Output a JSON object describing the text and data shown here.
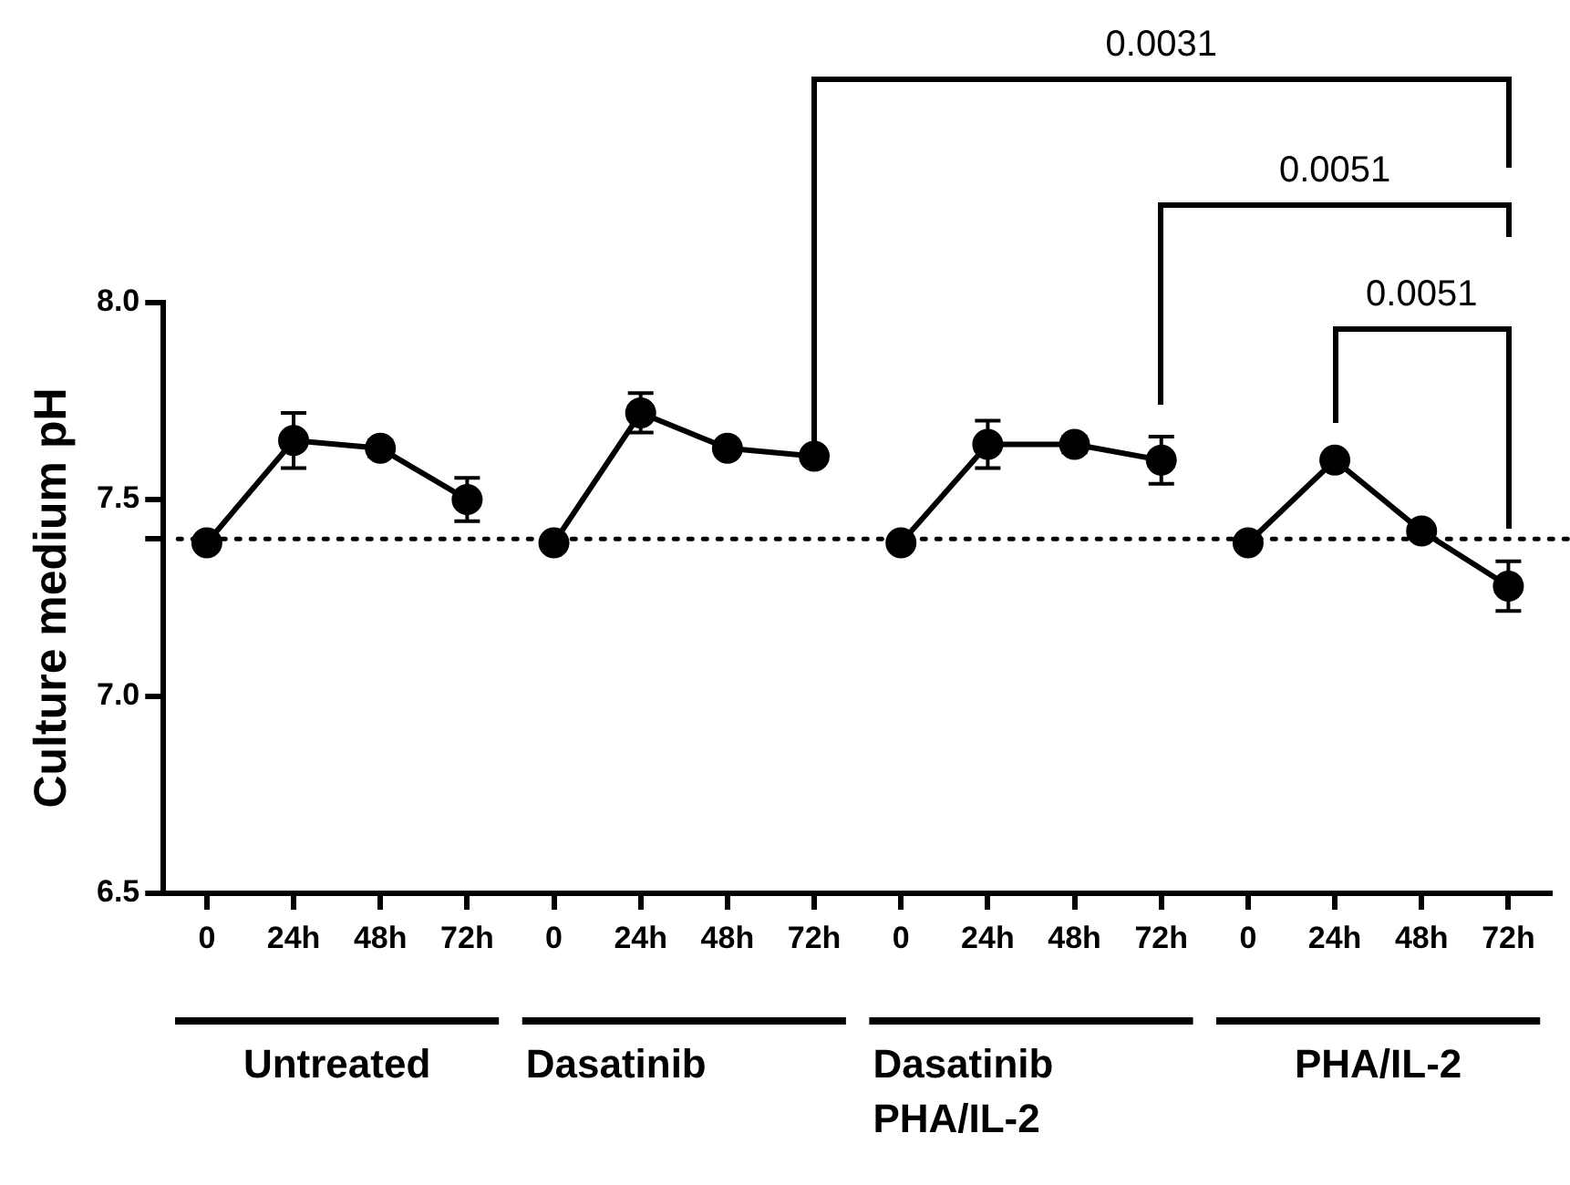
{
  "chart_data": {
    "type": "line",
    "ylabel": "Culture medium pH",
    "categories": [
      "0",
      "24h",
      "48h",
      "72h",
      "0",
      "24h",
      "48h",
      "72h",
      "0",
      "24h",
      "48h",
      "72h",
      "0",
      "24h",
      "48h",
      "72h"
    ],
    "series": [
      {
        "color": "#000000",
        "values": [
          7.39,
          7.65,
          7.63,
          7.5,
          null,
          null,
          null,
          null,
          null,
          null,
          null,
          null,
          null,
          null,
          null,
          null
        ],
        "errors": [
          null,
          0.07,
          0.02,
          0.055,
          null,
          null,
          null,
          null,
          null,
          null,
          null,
          null,
          null,
          null,
          null,
          null
        ]
      },
      {
        "color": "#000000",
        "values": [
          null,
          null,
          null,
          null,
          7.39,
          7.72,
          7.63,
          7.61,
          null,
          null,
          null,
          null,
          null,
          null,
          null,
          null
        ],
        "errors": [
          null,
          null,
          null,
          null,
          null,
          0.05,
          null,
          null,
          null,
          null,
          null,
          null,
          null,
          null,
          null,
          null
        ]
      },
      {
        "color": "#000000",
        "values": [
          null,
          null,
          null,
          null,
          null,
          null,
          null,
          null,
          7.39,
          7.64,
          7.64,
          7.6,
          null,
          null,
          null,
          null
        ],
        "errors": [
          null,
          null,
          null,
          null,
          null,
          null,
          null,
          null,
          null,
          0.06,
          0.02,
          0.06,
          null,
          null,
          null,
          null
        ]
      },
      {
        "color": "#000000",
        "values": [
          null,
          null,
          null,
          null,
          null,
          null,
          null,
          null,
          null,
          null,
          null,
          null,
          7.39,
          7.6,
          7.42,
          7.28
        ],
        "errors": [
          null,
          null,
          null,
          null,
          null,
          null,
          null,
          null,
          null,
          null,
          null,
          null,
          null,
          0.01,
          null,
          0.063
        ]
      }
    ],
    "ylim": [
      6.5,
      8.0
    ],
    "yticks": [
      6.5,
      {
        "value": 7.0,
        "label": "7.0"
      },
      {
        "value": 7.4,
        "label": null
      },
      7.5,
      {
        "value": 8.0,
        "label": "8.0"
      }
    ],
    "ref_lines": [
      {
        "axis": "y",
        "value": 7.4,
        "line_style": "dotted",
        "color": "#000000"
      }
    ],
    "annotations": [
      "Untreated",
      "Dasatinib",
      "Dasatinib PHA/IL-2",
      "PHA/IL-2",
      "0.0031",
      "0.0051",
      "0.0051"
    ],
    "marker": "circle",
    "line_style": "solid",
    "grid": false,
    "legend": false
  }
}
